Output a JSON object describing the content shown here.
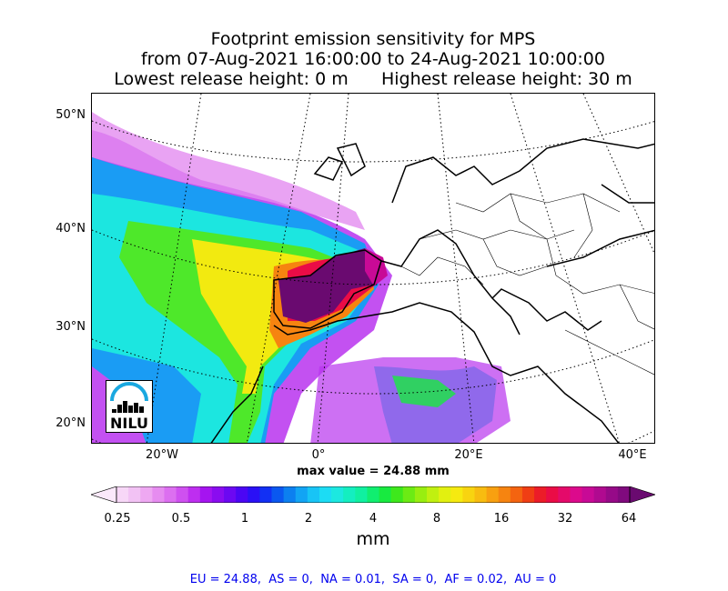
{
  "title": {
    "line1": "Footprint emission sensitivity for MPS",
    "line2": "from 07-Aug-2021 16:00:00 to 24-Aug-2021 10:00:00",
    "line3": "Lowest release height: 0 m      Highest release height: 30 m"
  },
  "map": {
    "lat_labels": [
      "50°N",
      "40°N",
      "30°N",
      "20°N"
    ],
    "lon_labels": [
      "20°W",
      "0°",
      "20°E",
      "40°E"
    ],
    "logo_text": "NILU",
    "max_value_text": "max value = 24.88 mm"
  },
  "colorbar": {
    "ticks": [
      "0.25",
      "0.5",
      "1",
      "2",
      "4",
      "8",
      "16",
      "32",
      "64"
    ],
    "unit": "mm",
    "colors": [
      "#fbe9fb",
      "#f7d7f7",
      "#f2c2f4",
      "#eea8f2",
      "#e68cf0",
      "#dc6ff0",
      "#cf50f0",
      "#be2ef0",
      "#a514f0",
      "#8a0cf0",
      "#6c08f2",
      "#4b06f4",
      "#2a10f6",
      "#1230f4",
      "#0a58f0",
      "#0c80f0",
      "#12a4f4",
      "#18c4f6",
      "#1cdcf4",
      "#1ce8e0",
      "#14eec0",
      "#10f0a0",
      "#10ee70",
      "#18ea40",
      "#3ee81c",
      "#6ceb14",
      "#98ee10",
      "#c0f010",
      "#e2f010",
      "#f6ea10",
      "#f8d410",
      "#f8bc10",
      "#f8a010",
      "#f68410",
      "#f46410",
      "#f03e14",
      "#ec1c28",
      "#ea0c46",
      "#e40a6a",
      "#dc0a8c",
      "#c80a96",
      "#b00a90",
      "#960a88",
      "#800a7e",
      "#6a0a70"
    ]
  },
  "summary": "EU = 24.88,  AS = 0,  NA = 0.01,  SA = 0,  AF = 0.02,  AU = 0"
}
